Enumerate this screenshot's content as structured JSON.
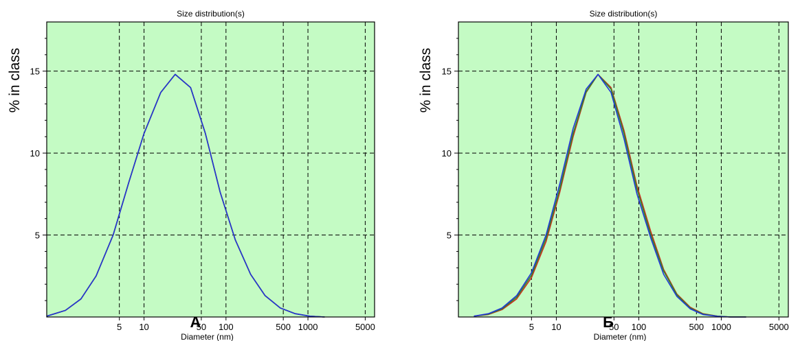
{
  "chart_data": [
    {
      "type": "line",
      "title": "Size distribution(s)",
      "xlabel": "Diameter (nm)",
      "ylabel": "% in class",
      "panel_label": "A",
      "x_scale": "log",
      "xlim": [
        0.65,
        6500
      ],
      "ylim": [
        0,
        18
      ],
      "x_ticks": [
        5,
        10,
        50,
        100,
        500,
        1000,
        5000
      ],
      "x_tick_labels": [
        "5",
        "10",
        "50",
        "100",
        "500",
        "1000",
        "5000"
      ],
      "y_ticks": [
        5,
        10,
        15
      ],
      "y_tick_labels": [
        "5",
        "10",
        "15"
      ],
      "grid": true,
      "grid_style": "dashed",
      "background": "#c4fbc4",
      "series": [
        {
          "color": "#cc2a1f",
          "x": [
            0.65,
            1.1,
            1.7,
            2.6,
            4.2,
            6.5,
            10,
            16,
            24,
            37,
            56,
            85,
            130,
            200,
            300,
            460,
            700,
            1050,
            1600
          ],
          "y": [
            0.05,
            0.4,
            1.1,
            2.5,
            5.0,
            8.2,
            11.2,
            13.7,
            14.8,
            14.0,
            11.2,
            7.6,
            4.7,
            2.6,
            1.3,
            0.55,
            0.2,
            0.05,
            0.0
          ]
        },
        {
          "color": "#2a8a2a",
          "x": [
            0.65,
            1.1,
            1.7,
            2.6,
            4.2,
            6.5,
            10,
            16,
            24,
            37,
            56,
            85,
            130,
            200,
            300,
            460,
            700,
            1050,
            1600
          ],
          "y": [
            0.05,
            0.4,
            1.1,
            2.5,
            5.0,
            8.2,
            11.2,
            13.7,
            14.8,
            14.0,
            11.2,
            7.6,
            4.7,
            2.6,
            1.3,
            0.55,
            0.2,
            0.05,
            0.0
          ]
        },
        {
          "color": "#2433d8",
          "x": [
            0.65,
            1.1,
            1.7,
            2.6,
            4.2,
            6.5,
            10,
            16,
            24,
            37,
            56,
            85,
            130,
            200,
            300,
            460,
            700,
            1050,
            1600
          ],
          "y": [
            0.05,
            0.4,
            1.1,
            2.5,
            5.0,
            8.2,
            11.2,
            13.7,
            14.8,
            14.0,
            11.2,
            7.6,
            4.7,
            2.6,
            1.3,
            0.55,
            0.2,
            0.05,
            0.0
          ]
        }
      ]
    },
    {
      "type": "line",
      "title": "Size distribution(s)",
      "xlabel": "Diameter (nm)",
      "ylabel": "% in class",
      "panel_label": "Б",
      "x_scale": "log",
      "xlim": [
        0.65,
        6500
      ],
      "ylim": [
        0,
        18
      ],
      "x_ticks": [
        5,
        10,
        50,
        100,
        500,
        1000,
        5000
      ],
      "x_tick_labels": [
        "5",
        "10",
        "50",
        "100",
        "500",
        "1000",
        "5000"
      ],
      "y_ticks": [
        5,
        10,
        15
      ],
      "y_tick_labels": [
        "5",
        "10",
        "15"
      ],
      "grid": true,
      "grid_style": "dashed",
      "background": "#c4fbc4",
      "series": [
        {
          "color": "#cc2a1f",
          "x": [
            1.0,
            1.5,
            2.2,
            3.3,
            5.0,
            7.5,
            11,
            16,
            23,
            32,
            46,
            66,
            95,
            140,
            200,
            290,
            420,
            600,
            900,
            1300,
            2000
          ],
          "y": [
            0.05,
            0.15,
            0.45,
            1.1,
            2.4,
            4.6,
            7.6,
            11.0,
            13.7,
            14.8,
            14.0,
            11.4,
            8.0,
            5.2,
            2.9,
            1.4,
            0.6,
            0.2,
            0.05,
            0.0,
            0.0
          ]
        },
        {
          "color": "#2a8a2a",
          "x": [
            1.0,
            1.5,
            2.2,
            3.3,
            5.0,
            7.5,
            11,
            16,
            23,
            32,
            46,
            66,
            95,
            140,
            200,
            290,
            420,
            600,
            900,
            1300,
            2000
          ],
          "y": [
            0.05,
            0.17,
            0.5,
            1.2,
            2.55,
            4.8,
            7.8,
            11.2,
            13.75,
            14.8,
            13.9,
            11.2,
            7.8,
            5.0,
            2.8,
            1.35,
            0.55,
            0.18,
            0.05,
            0.0,
            0.0
          ]
        },
        {
          "color": "#2433d8",
          "x": [
            1.0,
            1.5,
            2.2,
            3.3,
            5.0,
            7.5,
            11,
            16,
            23,
            32,
            46,
            66,
            95,
            140,
            200,
            290,
            420,
            600,
            900,
            1300,
            2000
          ],
          "y": [
            0.05,
            0.2,
            0.55,
            1.3,
            2.7,
            5.0,
            8.1,
            11.5,
            13.9,
            14.8,
            13.7,
            10.9,
            7.5,
            4.8,
            2.6,
            1.25,
            0.5,
            0.15,
            0.04,
            0.0,
            0.0
          ]
        }
      ]
    }
  ]
}
